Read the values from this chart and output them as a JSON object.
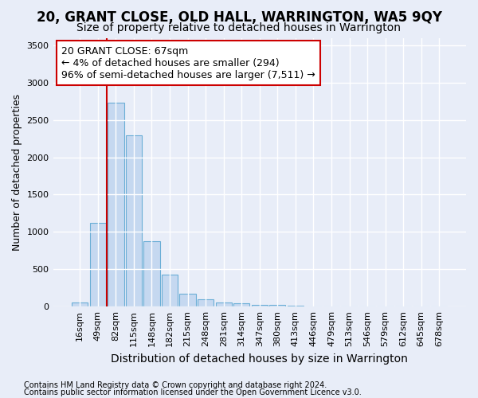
{
  "title": "20, GRANT CLOSE, OLD HALL, WARRINGTON, WA5 9QY",
  "subtitle": "Size of property relative to detached houses in Warrington",
  "xlabel": "Distribution of detached houses by size in Warrington",
  "ylabel": "Number of detached properties",
  "bar_labels": [
    "16sqm",
    "49sqm",
    "82sqm",
    "115sqm",
    "148sqm",
    "182sqm",
    "215sqm",
    "248sqm",
    "281sqm",
    "314sqm",
    "347sqm",
    "380sqm",
    "413sqm",
    "446sqm",
    "479sqm",
    "513sqm",
    "546sqm",
    "579sqm",
    "612sqm",
    "645sqm",
    "678sqm"
  ],
  "bar_values": [
    50,
    1120,
    2730,
    2290,
    880,
    430,
    170,
    95,
    55,
    40,
    25,
    18,
    8,
    4,
    2,
    1,
    1,
    0,
    0,
    0,
    0
  ],
  "bar_color": "#c5d8f0",
  "bar_edge_color": "#6aaed6",
  "highlight_color": "#cc0000",
  "annotation_text": "20 GRANT CLOSE: 67sqm\n← 4% of detached houses are smaller (294)\n96% of semi-detached houses are larger (7,511) →",
  "annotation_box_color": "#ffffff",
  "annotation_box_edge": "#cc0000",
  "ylim": [
    0,
    3600
  ],
  "yticks": [
    0,
    500,
    1000,
    1500,
    2000,
    2500,
    3000,
    3500
  ],
  "bg_color": "#e8edf8",
  "plot_bg_color": "#e8edf8",
  "grid_color": "#ffffff",
  "footer_line1": "Contains HM Land Registry data © Crown copyright and database right 2024.",
  "footer_line2": "Contains public sector information licensed under the Open Government Licence v3.0.",
  "title_fontsize": 12,
  "subtitle_fontsize": 10,
  "xlabel_fontsize": 10,
  "ylabel_fontsize": 9,
  "tick_fontsize": 8,
  "annotation_fontsize": 9,
  "footer_fontsize": 7
}
